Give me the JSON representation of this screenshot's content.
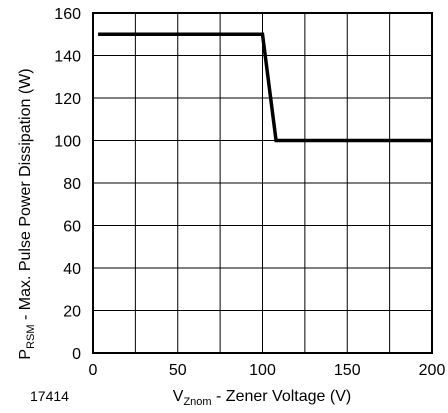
{
  "figure_id": "17414",
  "chart_data": {
    "type": "line",
    "xlabel": {
      "main": "V",
      "sub": "Znom",
      "rest": " - Zener Voltage (V)"
    },
    "ylabel": {
      "main": "P",
      "sub": "RSM",
      "rest": " - Max. Pulse Power Dissipation (W)"
    },
    "xlim": [
      0,
      200
    ],
    "ylim": [
      0,
      160
    ],
    "x_ticks": [
      0,
      50,
      100,
      150,
      200
    ],
    "y_ticks": [
      0,
      20,
      40,
      60,
      80,
      100,
      120,
      140,
      160
    ],
    "x_grid": [
      0,
      25,
      50,
      75,
      100,
      125,
      150,
      175,
      200
    ],
    "y_grid": [
      0,
      20,
      40,
      60,
      80,
      100,
      120,
      140,
      160
    ],
    "grid": true,
    "series": [
      {
        "points": [
          [
            3,
            150
          ],
          [
            100,
            150
          ],
          [
            108,
            100
          ],
          [
            200,
            100
          ]
        ],
        "color": "#000000"
      }
    ]
  }
}
